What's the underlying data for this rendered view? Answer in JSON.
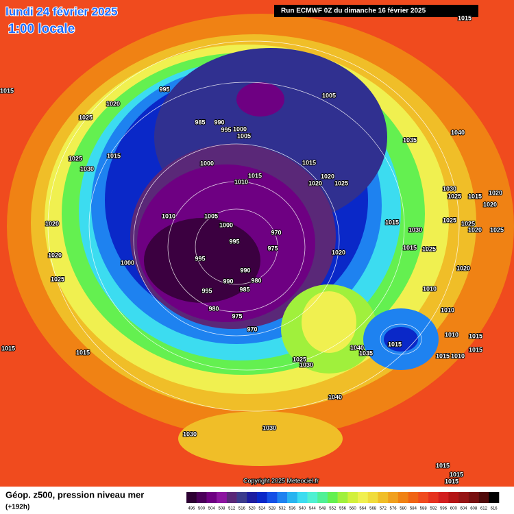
{
  "header": {
    "title": "lundi 24 février 2025",
    "subtitle": "1:00 locale",
    "run": "Run ECMWF 0Z du dimanche 16 février 2025"
  },
  "map": {
    "isobar_labels": [
      "1015",
      "1015",
      "995",
      "1020",
      "1005",
      "1025",
      "985",
      "990",
      "1000",
      "995",
      "1005",
      "1040",
      "1035",
      "1025",
      "1015",
      "1030",
      "1000",
      "1015",
      "1015",
      "1010",
      "1020",
      "1020",
      "1025",
      "1030",
      "1025",
      "1015",
      "1020",
      "1020",
      "1010",
      "1005",
      "1000",
      "1015",
      "1030",
      "1025",
      "1025",
      "1020",
      "1025",
      "1020",
      "970",
      "995",
      "1015",
      "1025",
      "975",
      "1020",
      "1020",
      "1000",
      "995",
      "990",
      "1020",
      "1025",
      "990",
      "980",
      "1010",
      "995",
      "985",
      "1010",
      "980",
      "975",
      "970",
      "1010",
      "1015",
      "1040",
      "1035",
      "1015",
      "1015",
      "1015",
      "1015",
      "1015",
      "1010",
      "1025",
      "1030",
      "1040",
      "1030",
      "1030",
      "1015",
      "1015",
      "1015"
    ]
  },
  "footer": {
    "legend_title": "Géop. z500, pression niveau mer",
    "lead_time": "(+192h)",
    "copyright": "Copyright 2025 Meteociel.fr"
  },
  "colorbar": {
    "values": [
      496,
      500,
      504,
      508,
      512,
      516,
      520,
      524,
      528,
      532,
      536,
      540,
      544,
      548,
      552,
      556,
      560,
      564,
      568,
      572,
      576,
      580,
      584,
      588,
      592,
      596,
      600,
      604,
      608,
      612,
      616
    ],
    "colors": [
      "#2d0033",
      "#4b005a",
      "#6e0082",
      "#8c14a0",
      "#5a2878",
      "#3c3c8c",
      "#1e1ea0",
      "#0a28c8",
      "#1450e6",
      "#1e82f0",
      "#28b4f0",
      "#3cdcf0",
      "#50f0d2",
      "#50f096",
      "#64f050",
      "#a0f03c",
      "#d2f03c",
      "#f0f050",
      "#f0dc3c",
      "#f0be28",
      "#f0a01e",
      "#f08214",
      "#f06414",
      "#f04b1e",
      "#e6321e",
      "#d21e1e",
      "#b41414",
      "#961414",
      "#781010",
      "#500a0a",
      "#000000"
    ]
  }
}
